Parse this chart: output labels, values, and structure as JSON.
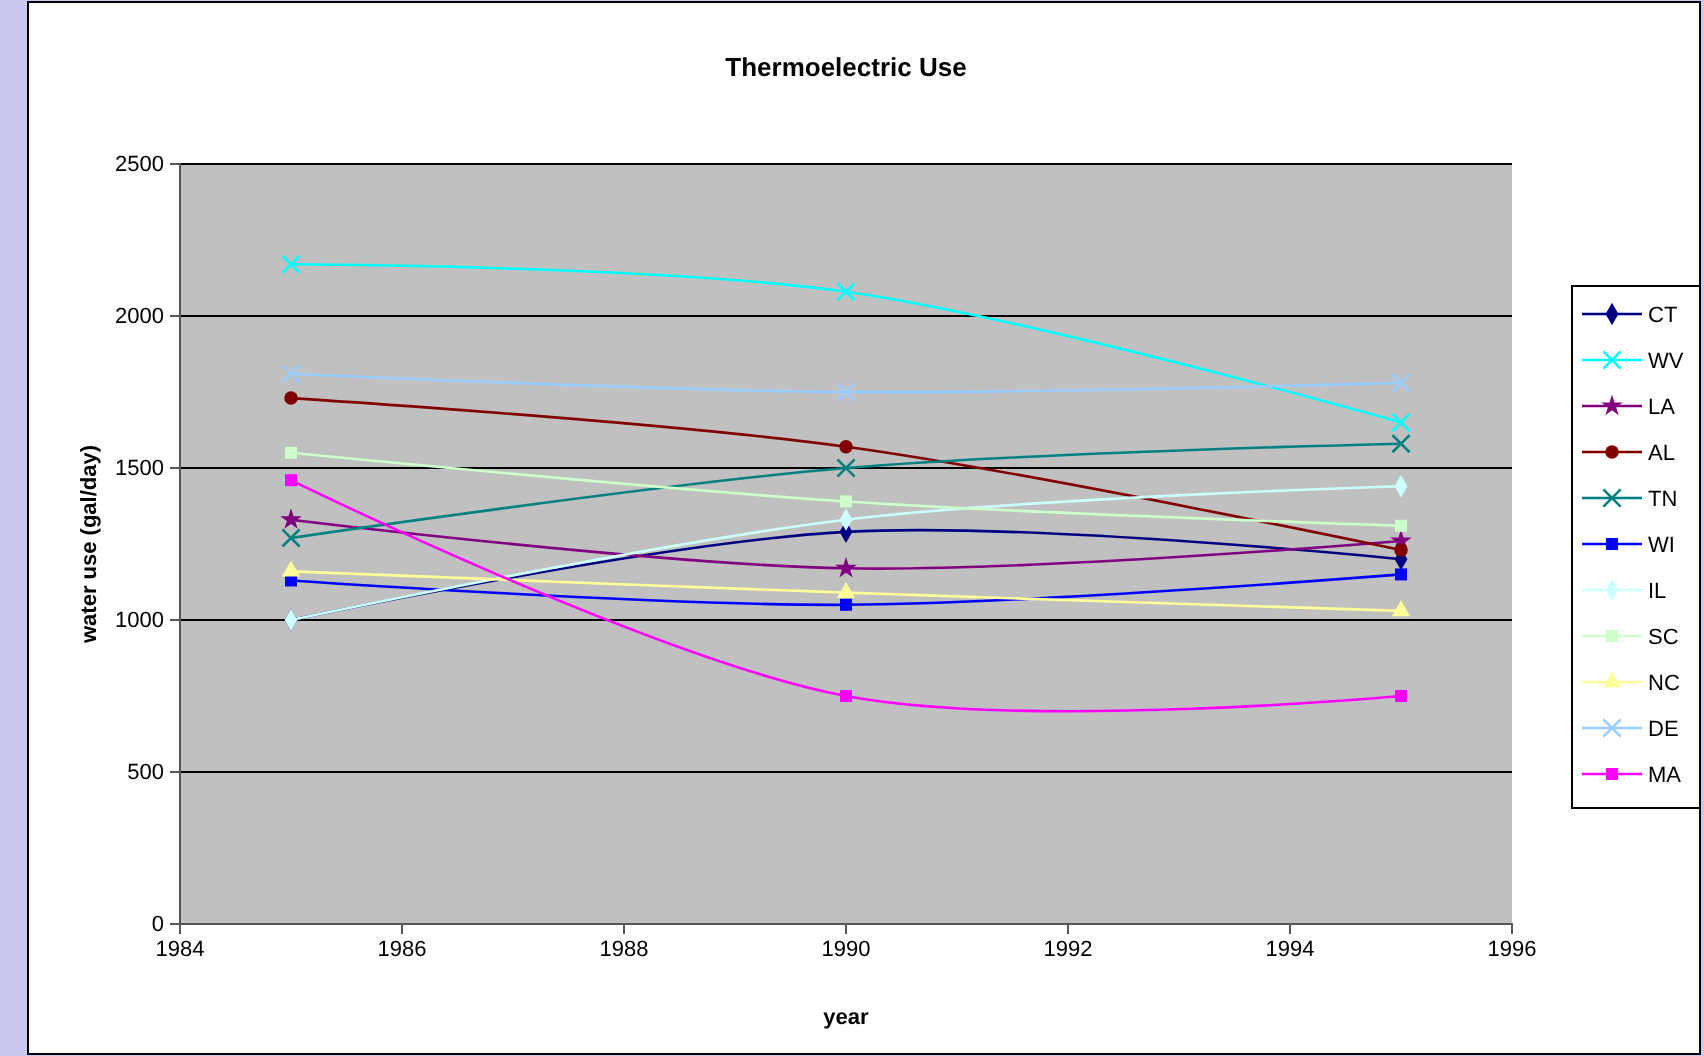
{
  "chart_data": {
    "type": "line",
    "title": "Thermoelectric Use",
    "xlabel": "year",
    "ylabel": "water use (gal/day)",
    "x": [
      1985,
      1990,
      1995
    ],
    "xlim": [
      1984,
      1996
    ],
    "xticks": [
      1984,
      1986,
      1988,
      1990,
      1992,
      1994,
      1996
    ],
    "ylim": [
      0,
      2500
    ],
    "yticks": [
      0,
      500,
      1000,
      1500,
      2000,
      2500
    ],
    "grid": "y",
    "legend": "right",
    "series": [
      {
        "name": "CT",
        "color": "#000080",
        "marker": "diamond",
        "values": [
          1000,
          1290,
          1200
        ]
      },
      {
        "name": "WV",
        "color": "#00ffff",
        "marker": "cross",
        "values": [
          2170,
          2080,
          1650
        ]
      },
      {
        "name": "LA",
        "color": "#800080",
        "marker": "star",
        "values": [
          1330,
          1170,
          1260
        ]
      },
      {
        "name": "AL",
        "color": "#800000",
        "marker": "circle",
        "values": [
          1730,
          1570,
          1230
        ]
      },
      {
        "name": "TN",
        "color": "#008080",
        "marker": "cross",
        "values": [
          1270,
          1500,
          1580
        ]
      },
      {
        "name": "WI",
        "color": "#0000ff",
        "marker": "square",
        "values": [
          1130,
          1050,
          1150
        ]
      },
      {
        "name": "IL",
        "color": "#ccffff",
        "marker": "diamond",
        "values": [
          1000,
          1330,
          1440
        ]
      },
      {
        "name": "SC",
        "color": "#ccffcc",
        "marker": "square",
        "values": [
          1550,
          1390,
          1310
        ]
      },
      {
        "name": "NC",
        "color": "#ffff99",
        "marker": "triangle",
        "values": [
          1160,
          1090,
          1030
        ]
      },
      {
        "name": "DE",
        "color": "#99ccff",
        "marker": "cross",
        "values": [
          1810,
          1750,
          1780
        ]
      },
      {
        "name": "MA",
        "color": "#ff00ff",
        "marker": "square",
        "values": [
          1460,
          750,
          750
        ]
      }
    ]
  }
}
